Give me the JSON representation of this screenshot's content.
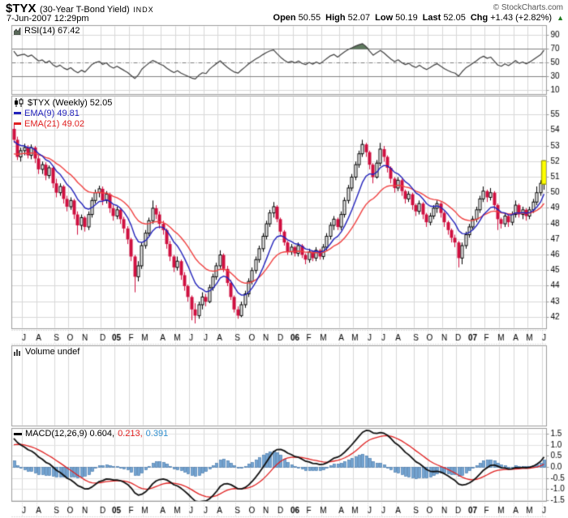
{
  "header": {
    "symbol": "$TYX",
    "name": "(30-Year T-Bond Yield)",
    "exchange": "INDX",
    "copyright": "© StockCharts.com",
    "datetime": "7-Jun-2007 12:29pm",
    "quote": {
      "open_label": "Open",
      "open": "50.55",
      "high_label": "High",
      "high": "52.07",
      "low_label": "Low",
      "low": "50.19",
      "last_label": "Last",
      "last": "52.05",
      "chg_label": "Chg",
      "chg": "+1.43 (+2.82%)",
      "up_arrow": "▲"
    }
  },
  "legends": {
    "rsi": "RSI(14) 67.42",
    "price_main": "$TYX (Weekly) 52.05",
    "ema9": "EMA(9) 49.81",
    "ema21": "EMA(21) 49.02",
    "volume": "Volume undef",
    "macd_black": "MACD(12,26,9) 0.604,",
    "macd_red": " 0.213,",
    "macd_blue": " 0.391"
  },
  "colors": {
    "up_fill": "#ffffff",
    "down": "#d01040",
    "black": "#000000",
    "ema9": "#2222bb",
    "ema21": "#f04040",
    "last_fill": "#ffff00",
    "last_stroke": "#a8a800",
    "rsi_line": "#404040",
    "rsi_fill": "#5f7a5f",
    "macd_line": "#111111",
    "signal": "#e02020",
    "hist_fill": "#74a5d2",
    "hist_stroke": "#3a6ea5",
    "grid": "#d8d8d8",
    "grid_dark": "#808080",
    "border": "#9c9c9c",
    "up_arrow_green": "#1e7a1e",
    "macd_legend_blue": "#3090d0"
  },
  "chart_data": {
    "type": "candlestick+indicators",
    "timeframe": "weekly",
    "start": "Jun-2004",
    "end": "Jun-2007",
    "price_axis": {
      "ticks": [
        55,
        54,
        53,
        52,
        51,
        50,
        49,
        48,
        47,
        46,
        45,
        44,
        43,
        42
      ],
      "min": 41.3,
      "max": 56.2
    },
    "rsi_axis": {
      "ticks": [
        90,
        70,
        50,
        30,
        10
      ],
      "overbought": 70,
      "oversold": 30,
      "mid": 50
    },
    "macd_axis": {
      "ticks": [
        1.5,
        1.0,
        0.5,
        0.0,
        -0.5,
        -1.0,
        -1.5
      ]
    },
    "indicators": {
      "rsi_period": 14,
      "ema_fast": 9,
      "ema_slow": 21,
      "macd_params": [
        12,
        26,
        9
      ],
      "seeds": {
        "rsi_gain": 0.5,
        "rsi_loss": 0.245,
        "ema9": 53.3,
        "ema21": 52.4,
        "ema12": 53.3,
        "ema26": 51.9,
        "signal": 0.95
      }
    },
    "month_ticks": [
      [
        "J",
        3,
        0
      ],
      [
        "A",
        7,
        0
      ],
      [
        "S",
        12,
        0
      ],
      [
        "O",
        16,
        0
      ],
      [
        "N",
        20,
        0
      ],
      [
        "D",
        25,
        0
      ],
      [
        "05",
        29,
        1
      ],
      [
        "F",
        33,
        0
      ],
      [
        "M",
        37,
        0
      ],
      [
        "A",
        42,
        0
      ],
      [
        "M",
        46,
        0
      ],
      [
        "J",
        50,
        0
      ],
      [
        "J",
        54,
        0
      ],
      [
        "A",
        58,
        0
      ],
      [
        "S",
        63,
        0
      ],
      [
        "O",
        67,
        0
      ],
      [
        "N",
        71,
        0
      ],
      [
        "D",
        75,
        0
      ],
      [
        "06",
        79,
        1
      ],
      [
        "F",
        83,
        0
      ],
      [
        "M",
        87,
        0
      ],
      [
        "A",
        92,
        0
      ],
      [
        "M",
        96,
        0
      ],
      [
        "J",
        100,
        0
      ],
      [
        "J",
        104,
        0
      ],
      [
        "A",
        108,
        0
      ],
      [
        "S",
        113,
        0
      ],
      [
        "O",
        117,
        0
      ],
      [
        "N",
        121,
        0
      ],
      [
        "D",
        125,
        0
      ],
      [
        "07",
        129,
        1
      ],
      [
        "F",
        133,
        0
      ],
      [
        "M",
        137,
        0
      ],
      [
        "A",
        141,
        0
      ],
      [
        "M",
        145,
        0
      ],
      [
        "J",
        149,
        0
      ]
    ],
    "ohlc": [
      [
        54.1,
        54.45,
        53.2,
        53.4
      ],
      [
        53.4,
        53.6,
        52.1,
        52.3
      ],
      [
        52.3,
        52.9,
        52.0,
        52.7
      ],
      [
        52.7,
        53.15,
        52.4,
        52.9
      ],
      [
        52.9,
        53.05,
        52.2,
        52.4
      ],
      [
        52.4,
        53.1,
        52.15,
        52.9
      ],
      [
        52.9,
        53.0,
        51.9,
        52.2
      ],
      [
        52.2,
        52.4,
        51.2,
        51.5
      ],
      [
        51.5,
        52.0,
        51.2,
        51.8
      ],
      [
        51.8,
        51.95,
        50.8,
        51.1
      ],
      [
        51.1,
        51.75,
        50.9,
        51.6
      ],
      [
        51.6,
        51.7,
        50.3,
        50.6
      ],
      [
        50.6,
        50.9,
        49.7,
        50.0
      ],
      [
        50.0,
        50.6,
        49.8,
        50.4
      ],
      [
        50.4,
        50.5,
        49.3,
        49.6
      ],
      [
        49.6,
        49.8,
        48.8,
        49.1
      ],
      [
        49.1,
        49.7,
        48.9,
        49.5
      ],
      [
        49.5,
        49.6,
        48.3,
        48.6
      ],
      [
        48.6,
        48.8,
        47.3,
        47.9
      ],
      [
        47.9,
        48.6,
        47.6,
        48.4
      ],
      [
        48.4,
        48.5,
        47.5,
        47.8
      ],
      [
        47.8,
        48.8,
        47.6,
        48.6
      ],
      [
        48.6,
        49.7,
        48.4,
        49.5
      ],
      [
        49.5,
        50.2,
        49.3,
        50.0
      ],
      [
        50.0,
        50.45,
        49.7,
        50.25
      ],
      [
        50.25,
        50.4,
        49.2,
        49.5
      ],
      [
        49.5,
        50.1,
        49.3,
        49.9
      ],
      [
        49.9,
        50.0,
        48.7,
        49.0
      ],
      [
        49.0,
        49.2,
        48.2,
        48.5
      ],
      [
        48.5,
        49.1,
        48.3,
        48.9
      ],
      [
        48.9,
        49.0,
        48.0,
        48.3
      ],
      [
        48.3,
        48.45,
        47.4,
        47.7
      ],
      [
        47.7,
        47.85,
        46.7,
        47.0
      ],
      [
        47.0,
        47.1,
        45.6,
        45.9
      ],
      [
        45.9,
        46.0,
        43.6,
        44.6
      ],
      [
        44.6,
        45.6,
        44.3,
        45.3
      ],
      [
        45.3,
        46.8,
        45.1,
        46.6
      ],
      [
        46.6,
        47.6,
        46.4,
        47.4
      ],
      [
        47.4,
        48.4,
        47.2,
        48.2
      ],
      [
        48.2,
        49.5,
        48.0,
        49.0
      ],
      [
        49.0,
        49.2,
        48.3,
        48.6
      ],
      [
        48.6,
        48.8,
        47.7,
        48.0
      ],
      [
        48.0,
        48.2,
        47.3,
        47.6
      ],
      [
        47.6,
        47.7,
        46.4,
        46.7
      ],
      [
        46.7,
        46.9,
        45.6,
        45.9
      ],
      [
        45.9,
        46.0,
        44.9,
        45.2
      ],
      [
        45.2,
        45.9,
        45.0,
        45.6
      ],
      [
        45.6,
        45.7,
        44.4,
        44.7
      ],
      [
        44.7,
        44.9,
        43.7,
        44.0
      ],
      [
        44.0,
        44.1,
        43.0,
        43.3
      ],
      [
        43.3,
        43.4,
        41.8,
        42.5
      ],
      [
        42.5,
        42.9,
        41.6,
        42.1
      ],
      [
        42.1,
        43.0,
        41.9,
        42.8
      ],
      [
        42.8,
        43.6,
        42.5,
        43.3
      ],
      [
        43.3,
        43.5,
        42.7,
        43.0
      ],
      [
        43.0,
        44.1,
        42.9,
        43.9
      ],
      [
        43.9,
        44.8,
        43.7,
        44.6
      ],
      [
        44.6,
        45.5,
        44.4,
        45.3
      ],
      [
        45.3,
        46.3,
        45.1,
        46.0
      ],
      [
        46.0,
        46.1,
        44.9,
        45.1
      ],
      [
        45.1,
        45.3,
        44.0,
        44.2
      ],
      [
        44.2,
        44.4,
        43.1,
        43.3
      ],
      [
        43.3,
        43.4,
        42.3,
        42.5
      ],
      [
        42.5,
        42.7,
        41.9,
        42.1
      ],
      [
        42.1,
        43.0,
        42.0,
        42.8
      ],
      [
        42.8,
        43.7,
        42.6,
        43.5
      ],
      [
        43.5,
        44.5,
        43.3,
        44.3
      ],
      [
        44.3,
        45.2,
        44.1,
        45.0
      ],
      [
        45.0,
        45.9,
        44.8,
        45.7
      ],
      [
        45.7,
        46.6,
        45.5,
        46.4
      ],
      [
        46.4,
        47.4,
        46.2,
        47.2
      ],
      [
        47.2,
        48.2,
        47.0,
        48.0
      ],
      [
        48.0,
        48.9,
        47.8,
        48.7
      ],
      [
        48.7,
        49.4,
        48.4,
        49.1
      ],
      [
        49.1,
        49.2,
        48.1,
        48.3
      ],
      [
        48.3,
        48.4,
        47.3,
        47.5
      ],
      [
        47.5,
        47.6,
        46.6,
        46.8
      ],
      [
        46.8,
        46.9,
        46.0,
        46.2
      ],
      [
        46.2,
        46.7,
        46.0,
        46.5
      ],
      [
        46.5,
        46.6,
        45.9,
        46.1
      ],
      [
        46.1,
        46.8,
        45.9,
        46.6
      ],
      [
        46.6,
        46.7,
        45.8,
        46.0
      ],
      [
        46.0,
        46.1,
        45.4,
        45.7
      ],
      [
        45.7,
        46.4,
        45.5,
        46.2
      ],
      [
        46.2,
        46.3,
        45.6,
        45.8
      ],
      [
        45.8,
        46.5,
        45.6,
        46.3
      ],
      [
        46.3,
        46.4,
        45.7,
        45.9
      ],
      [
        45.9,
        46.7,
        45.7,
        46.5
      ],
      [
        46.5,
        47.4,
        46.3,
        47.2
      ],
      [
        47.2,
        48.1,
        47.0,
        47.9
      ],
      [
        47.9,
        48.5,
        47.6,
        48.3
      ],
      [
        48.3,
        48.4,
        47.6,
        47.8
      ],
      [
        47.8,
        48.8,
        47.6,
        48.6
      ],
      [
        48.6,
        49.7,
        48.4,
        49.5
      ],
      [
        49.5,
        50.5,
        49.3,
        50.3
      ],
      [
        50.3,
        51.2,
        50.1,
        51.0
      ],
      [
        51.0,
        52.0,
        50.8,
        51.8
      ],
      [
        51.8,
        52.7,
        51.6,
        52.5
      ],
      [
        52.5,
        53.4,
        52.3,
        53.1
      ],
      [
        53.1,
        53.2,
        52.3,
        52.6
      ],
      [
        52.6,
        52.7,
        51.5,
        51.8
      ],
      [
        51.8,
        51.9,
        50.6,
        51.0
      ],
      [
        51.0,
        52.1,
        50.9,
        51.9
      ],
      [
        51.9,
        53.2,
        51.7,
        52.8
      ],
      [
        52.8,
        53.0,
        52.0,
        52.3
      ],
      [
        52.3,
        52.4,
        51.3,
        51.6
      ],
      [
        51.6,
        51.7,
        50.6,
        50.9
      ],
      [
        50.9,
        51.0,
        50.0,
        50.3
      ],
      [
        50.3,
        51.0,
        50.1,
        50.8
      ],
      [
        50.8,
        50.9,
        49.8,
        50.1
      ],
      [
        50.1,
        50.2,
        49.3,
        49.6
      ],
      [
        49.6,
        50.1,
        49.4,
        49.9
      ],
      [
        49.9,
        50.0,
        48.9,
        49.2
      ],
      [
        49.2,
        49.3,
        48.5,
        48.8
      ],
      [
        48.8,
        49.5,
        48.6,
        49.3
      ],
      [
        49.3,
        49.4,
        48.3,
        48.6
      ],
      [
        48.6,
        48.7,
        47.8,
        48.1
      ],
      [
        48.1,
        48.7,
        47.9,
        48.5
      ],
      [
        48.5,
        49.2,
        48.3,
        49.0
      ],
      [
        49.0,
        49.5,
        48.7,
        49.3
      ],
      [
        49.3,
        49.4,
        48.4,
        48.7
      ],
      [
        48.7,
        48.8,
        47.8,
        48.1
      ],
      [
        48.1,
        48.2,
        47.3,
        47.6
      ],
      [
        47.6,
        47.7,
        46.8,
        47.1
      ],
      [
        47.1,
        47.3,
        46.5,
        46.8
      ],
      [
        46.8,
        46.9,
        45.2,
        45.8
      ],
      [
        45.8,
        46.8,
        45.4,
        46.6
      ],
      [
        46.6,
        47.5,
        46.4,
        47.3
      ],
      [
        47.3,
        48.0,
        47.1,
        47.8
      ],
      [
        47.8,
        48.5,
        47.6,
        48.3
      ],
      [
        48.3,
        49.1,
        48.1,
        48.9
      ],
      [
        48.9,
        49.8,
        48.7,
        49.6
      ],
      [
        49.6,
        50.4,
        49.4,
        50.1
      ],
      [
        50.1,
        50.2,
        49.4,
        49.7
      ],
      [
        49.7,
        50.3,
        49.5,
        50.0
      ],
      [
        50.0,
        50.1,
        48.9,
        49.2
      ],
      [
        49.2,
        49.3,
        47.6,
        48.3
      ],
      [
        48.3,
        48.4,
        47.7,
        48.0
      ],
      [
        48.0,
        48.7,
        47.8,
        48.5
      ],
      [
        48.5,
        48.6,
        47.8,
        48.1
      ],
      [
        48.1,
        48.8,
        47.9,
        48.6
      ],
      [
        48.6,
        49.5,
        48.4,
        49.2
      ],
      [
        49.2,
        49.3,
        48.4,
        48.6
      ],
      [
        48.6,
        49.1,
        48.3,
        48.9
      ],
      [
        48.9,
        49.0,
        48.2,
        48.5
      ],
      [
        48.5,
        49.1,
        48.3,
        48.9
      ],
      [
        48.9,
        49.6,
        48.7,
        49.4
      ],
      [
        49.4,
        50.4,
        49.2,
        50.0
      ],
      [
        50.0,
        50.8,
        49.8,
        50.6
      ],
      [
        50.55,
        52.07,
        50.19,
        52.05
      ]
    ]
  }
}
